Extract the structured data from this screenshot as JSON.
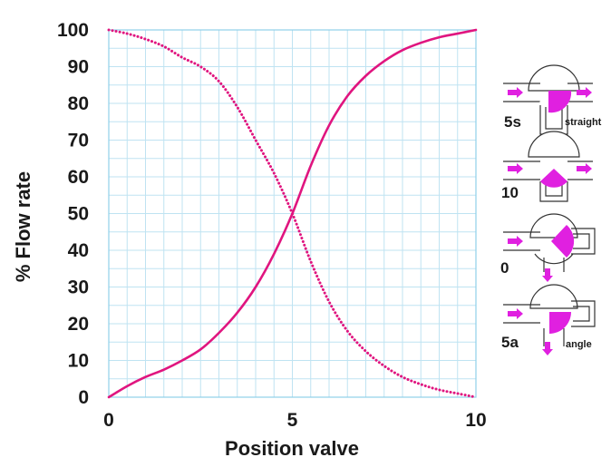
{
  "chart_data": {
    "type": "line",
    "title": "",
    "xlabel": "Position valve",
    "ylabel": "% Flow rate",
    "xlim": [
      0,
      10
    ],
    "ylim": [
      0,
      100
    ],
    "x_ticks": [
      "0",
      "5",
      "10"
    ],
    "y_ticks": [
      "0",
      "10",
      "20",
      "30",
      "40",
      "50",
      "60",
      "70",
      "80",
      "90",
      "100"
    ],
    "grid": true,
    "series": [
      {
        "style": "solid",
        "color": "#e0157f",
        "x": [
          0,
          0.5,
          1,
          1.5,
          2,
          2.5,
          3,
          3.5,
          4,
          4.5,
          5,
          5.5,
          6,
          6.5,
          7,
          7.5,
          8,
          8.5,
          9,
          9.5,
          10
        ],
        "y": [
          0,
          3,
          5.5,
          7.5,
          10,
          13,
          17.5,
          23,
          30,
          39,
          50,
          63,
          74,
          82,
          87.5,
          91.5,
          94.5,
          96.5,
          98,
          99,
          100
        ]
      },
      {
        "style": "dotted",
        "color": "#e0157f",
        "x": [
          0,
          0.5,
          1,
          1.5,
          2,
          2.5,
          3,
          3.5,
          4,
          4.5,
          5,
          5.5,
          6,
          6.5,
          7,
          7.5,
          8,
          8.5,
          9,
          9.5,
          10
        ],
        "y": [
          100,
          99,
          97.5,
          95.5,
          92.5,
          90,
          86,
          79,
          70,
          61,
          50,
          37,
          26,
          18,
          12.5,
          8.5,
          5.5,
          3.5,
          2,
          1,
          0
        ]
      }
    ]
  },
  "valve_diagrams": [
    {
      "position": "5s",
      "caption": "straight"
    },
    {
      "position": "10",
      "caption": ""
    },
    {
      "position": "0",
      "caption": ""
    },
    {
      "position": "5a",
      "caption": "angle"
    }
  ],
  "colors": {
    "curve": "#e0157f",
    "wedge": "#e020e0",
    "grid": "#bfe3f2",
    "frame": "#8fd0ea"
  }
}
